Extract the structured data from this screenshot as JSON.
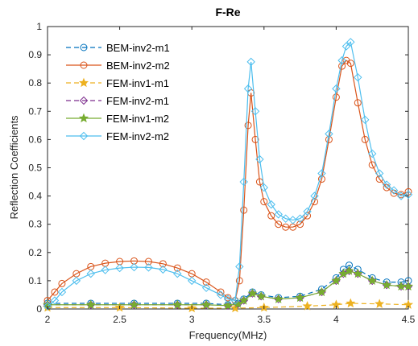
{
  "chart_data": {
    "type": "line",
    "title": "F-Re",
    "xlabel": "Frequency(MHz)",
    "ylabel": "Reflection Coefficients",
    "xlim": [
      2,
      4.5
    ],
    "ylim": [
      0,
      1
    ],
    "xticks": [
      2,
      2.5,
      3,
      3.5,
      4,
      4.5
    ],
    "yticks": [
      0,
      0.1,
      0.2,
      0.3,
      0.4,
      0.5,
      0.6,
      0.7,
      0.8,
      0.9,
      1
    ],
    "xtick_labels": [
      "2",
      "2.5",
      "3",
      "3.5",
      "4",
      "4.5"
    ],
    "ytick_labels": [
      "0",
      "0.1",
      "0.2",
      "0.3",
      "0.4",
      "0.5",
      "0.6",
      "0.7",
      "0.8",
      "0.9",
      "1"
    ],
    "grid": false,
    "legend_position": "top-left",
    "series": [
      {
        "name": "BEM-inv2-m1",
        "color": "#0072BD",
        "marker": "circle",
        "dashed": true,
        "x": [
          2.0,
          2.3,
          2.6,
          2.9,
          3.1,
          3.25,
          3.32,
          3.36,
          3.42,
          3.48,
          3.6,
          3.75,
          3.9,
          4.0,
          4.05,
          4.09,
          4.15,
          4.25,
          4.35,
          4.45,
          4.5
        ],
        "y": [
          0.02,
          0.02,
          0.02,
          0.02,
          0.02,
          0.015,
          0.02,
          0.035,
          0.06,
          0.05,
          0.04,
          0.045,
          0.07,
          0.11,
          0.14,
          0.155,
          0.14,
          0.11,
          0.095,
          0.095,
          0.1
        ]
      },
      {
        "name": "BEM-inv2-m2",
        "color": "#D95319",
        "marker": "circle",
        "dashed": false,
        "x": [
          2.0,
          2.05,
          2.1,
          2.2,
          2.3,
          2.4,
          2.5,
          2.6,
          2.7,
          2.8,
          2.9,
          3.0,
          3.1,
          3.2,
          3.25,
          3.3,
          3.33,
          3.36,
          3.39,
          3.41,
          3.44,
          3.47,
          3.5,
          3.55,
          3.6,
          3.65,
          3.7,
          3.75,
          3.8,
          3.85,
          3.9,
          3.95,
          4.0,
          4.04,
          4.07,
          4.1,
          4.15,
          4.2,
          4.25,
          4.3,
          4.35,
          4.4,
          4.45,
          4.5
        ],
        "y": [
          0.03,
          0.06,
          0.09,
          0.125,
          0.15,
          0.162,
          0.168,
          0.17,
          0.168,
          0.16,
          0.145,
          0.125,
          0.095,
          0.06,
          0.04,
          0.03,
          0.1,
          0.35,
          0.65,
          0.765,
          0.6,
          0.45,
          0.38,
          0.33,
          0.3,
          0.29,
          0.29,
          0.3,
          0.33,
          0.38,
          0.46,
          0.6,
          0.75,
          0.86,
          0.88,
          0.87,
          0.73,
          0.6,
          0.51,
          0.46,
          0.43,
          0.41,
          0.405,
          0.415
        ]
      },
      {
        "name": "FEM-inv1-m1",
        "color": "#EDB120",
        "marker": "star",
        "dashed": true,
        "x": [
          2.0,
          2.5,
          3.0,
          3.3,
          3.5,
          3.8,
          4.0,
          4.1,
          4.3,
          4.5
        ],
        "y": [
          0.005,
          0.005,
          0.003,
          0.003,
          0.005,
          0.01,
          0.015,
          0.02,
          0.018,
          0.015
        ]
      },
      {
        "name": "FEM-inv2-m1",
        "color": "#7E2F8E",
        "marker": "diamond",
        "dashed": true,
        "x": [
          2.0,
          2.3,
          2.6,
          2.9,
          3.1,
          3.25,
          3.32,
          3.36,
          3.42,
          3.48,
          3.6,
          3.75,
          3.9,
          4.0,
          4.05,
          4.09,
          4.15,
          4.25,
          4.35,
          4.45,
          4.5
        ],
        "y": [
          0.015,
          0.015,
          0.015,
          0.015,
          0.015,
          0.012,
          0.018,
          0.03,
          0.055,
          0.045,
          0.035,
          0.04,
          0.06,
          0.1,
          0.125,
          0.135,
          0.125,
          0.1,
          0.085,
          0.08,
          0.08
        ]
      },
      {
        "name": "FEM-inv1-m2",
        "color": "#77AC30",
        "marker": "star",
        "dashed": false,
        "x": [
          2.0,
          2.3,
          2.6,
          2.9,
          3.1,
          3.25,
          3.32,
          3.36,
          3.42,
          3.48,
          3.6,
          3.75,
          3.9,
          4.0,
          4.05,
          4.09,
          4.15,
          4.25,
          4.35,
          4.45,
          4.5
        ],
        "y": [
          0.015,
          0.015,
          0.015,
          0.015,
          0.015,
          0.012,
          0.018,
          0.03,
          0.055,
          0.045,
          0.035,
          0.04,
          0.06,
          0.1,
          0.125,
          0.135,
          0.125,
          0.1,
          0.085,
          0.08,
          0.08
        ]
      },
      {
        "name": "FEM-inv2-m2",
        "color": "#4DBEEE",
        "marker": "diamond",
        "dashed": false,
        "x": [
          2.0,
          2.05,
          2.1,
          2.2,
          2.3,
          2.4,
          2.5,
          2.6,
          2.7,
          2.8,
          2.9,
          3.0,
          3.1,
          3.2,
          3.25,
          3.3,
          3.33,
          3.36,
          3.39,
          3.41,
          3.44,
          3.47,
          3.5,
          3.55,
          3.6,
          3.65,
          3.7,
          3.75,
          3.8,
          3.85,
          3.9,
          3.95,
          4.0,
          4.04,
          4.07,
          4.1,
          4.15,
          4.2,
          4.25,
          4.3,
          4.35,
          4.4,
          4.45,
          4.5
        ],
        "y": [
          0.01,
          0.03,
          0.06,
          0.1,
          0.125,
          0.138,
          0.145,
          0.148,
          0.147,
          0.14,
          0.125,
          0.1,
          0.075,
          0.05,
          0.035,
          0.03,
          0.15,
          0.45,
          0.78,
          0.875,
          0.7,
          0.53,
          0.43,
          0.37,
          0.335,
          0.32,
          0.315,
          0.32,
          0.345,
          0.4,
          0.48,
          0.62,
          0.78,
          0.88,
          0.93,
          0.945,
          0.82,
          0.67,
          0.55,
          0.48,
          0.44,
          0.42,
          0.4,
          0.405
        ]
      }
    ]
  }
}
